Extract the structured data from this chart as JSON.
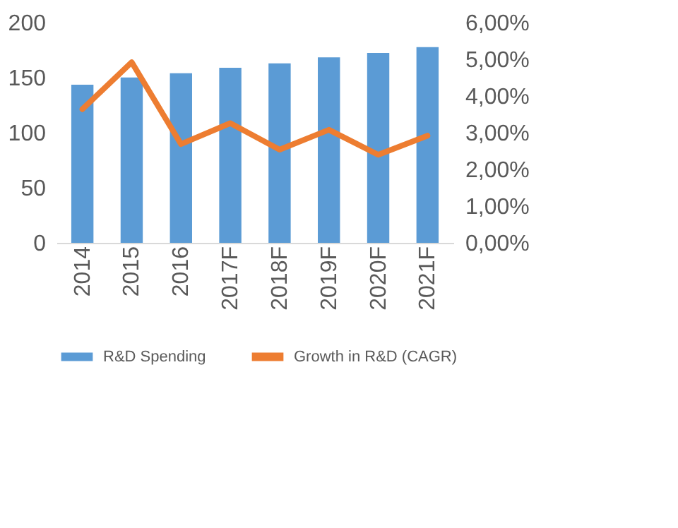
{
  "chart_data": {
    "type": "bar",
    "categories": [
      "2014",
      "2015",
      "2016",
      "2017F",
      "2018F",
      "2019F",
      "2020F",
      "2021F"
    ],
    "series": [
      {
        "name": "R&D Spending",
        "color": "#5b9bd5",
        "values": [
          143.6,
          150.2,
          154,
          159,
          163,
          168.5,
          172.4,
          177.8
        ]
      },
      {
        "name": "Growth in R&D (CAGR)",
        "color": "#ed7d31",
        "type": "line",
        "axis": "y2",
        "values": [
          3.64,
          4.92,
          2.69,
          3.26,
          2.54,
          3.08,
          2.4,
          2.92
        ]
      }
    ],
    "ylim": [
      0,
      200
    ],
    "yticks": [
      0,
      50,
      100,
      150,
      200
    ],
    "y2lim": [
      0,
      6
    ],
    "y2ticks": [
      {
        "value": 0,
        "label": "0,00%"
      },
      {
        "value": 1,
        "label": "1,00%"
      },
      {
        "value": 2,
        "label": "2,00%"
      },
      {
        "value": 3,
        "label": "3,00%"
      },
      {
        "value": 4,
        "label": "4,00%"
      },
      {
        "value": 5,
        "label": "5,00%"
      },
      {
        "value": 6,
        "label": "6,00%"
      }
    ],
    "grid": false,
    "legend": "bottom",
    "marker": "none",
    "line_style": "solid"
  }
}
